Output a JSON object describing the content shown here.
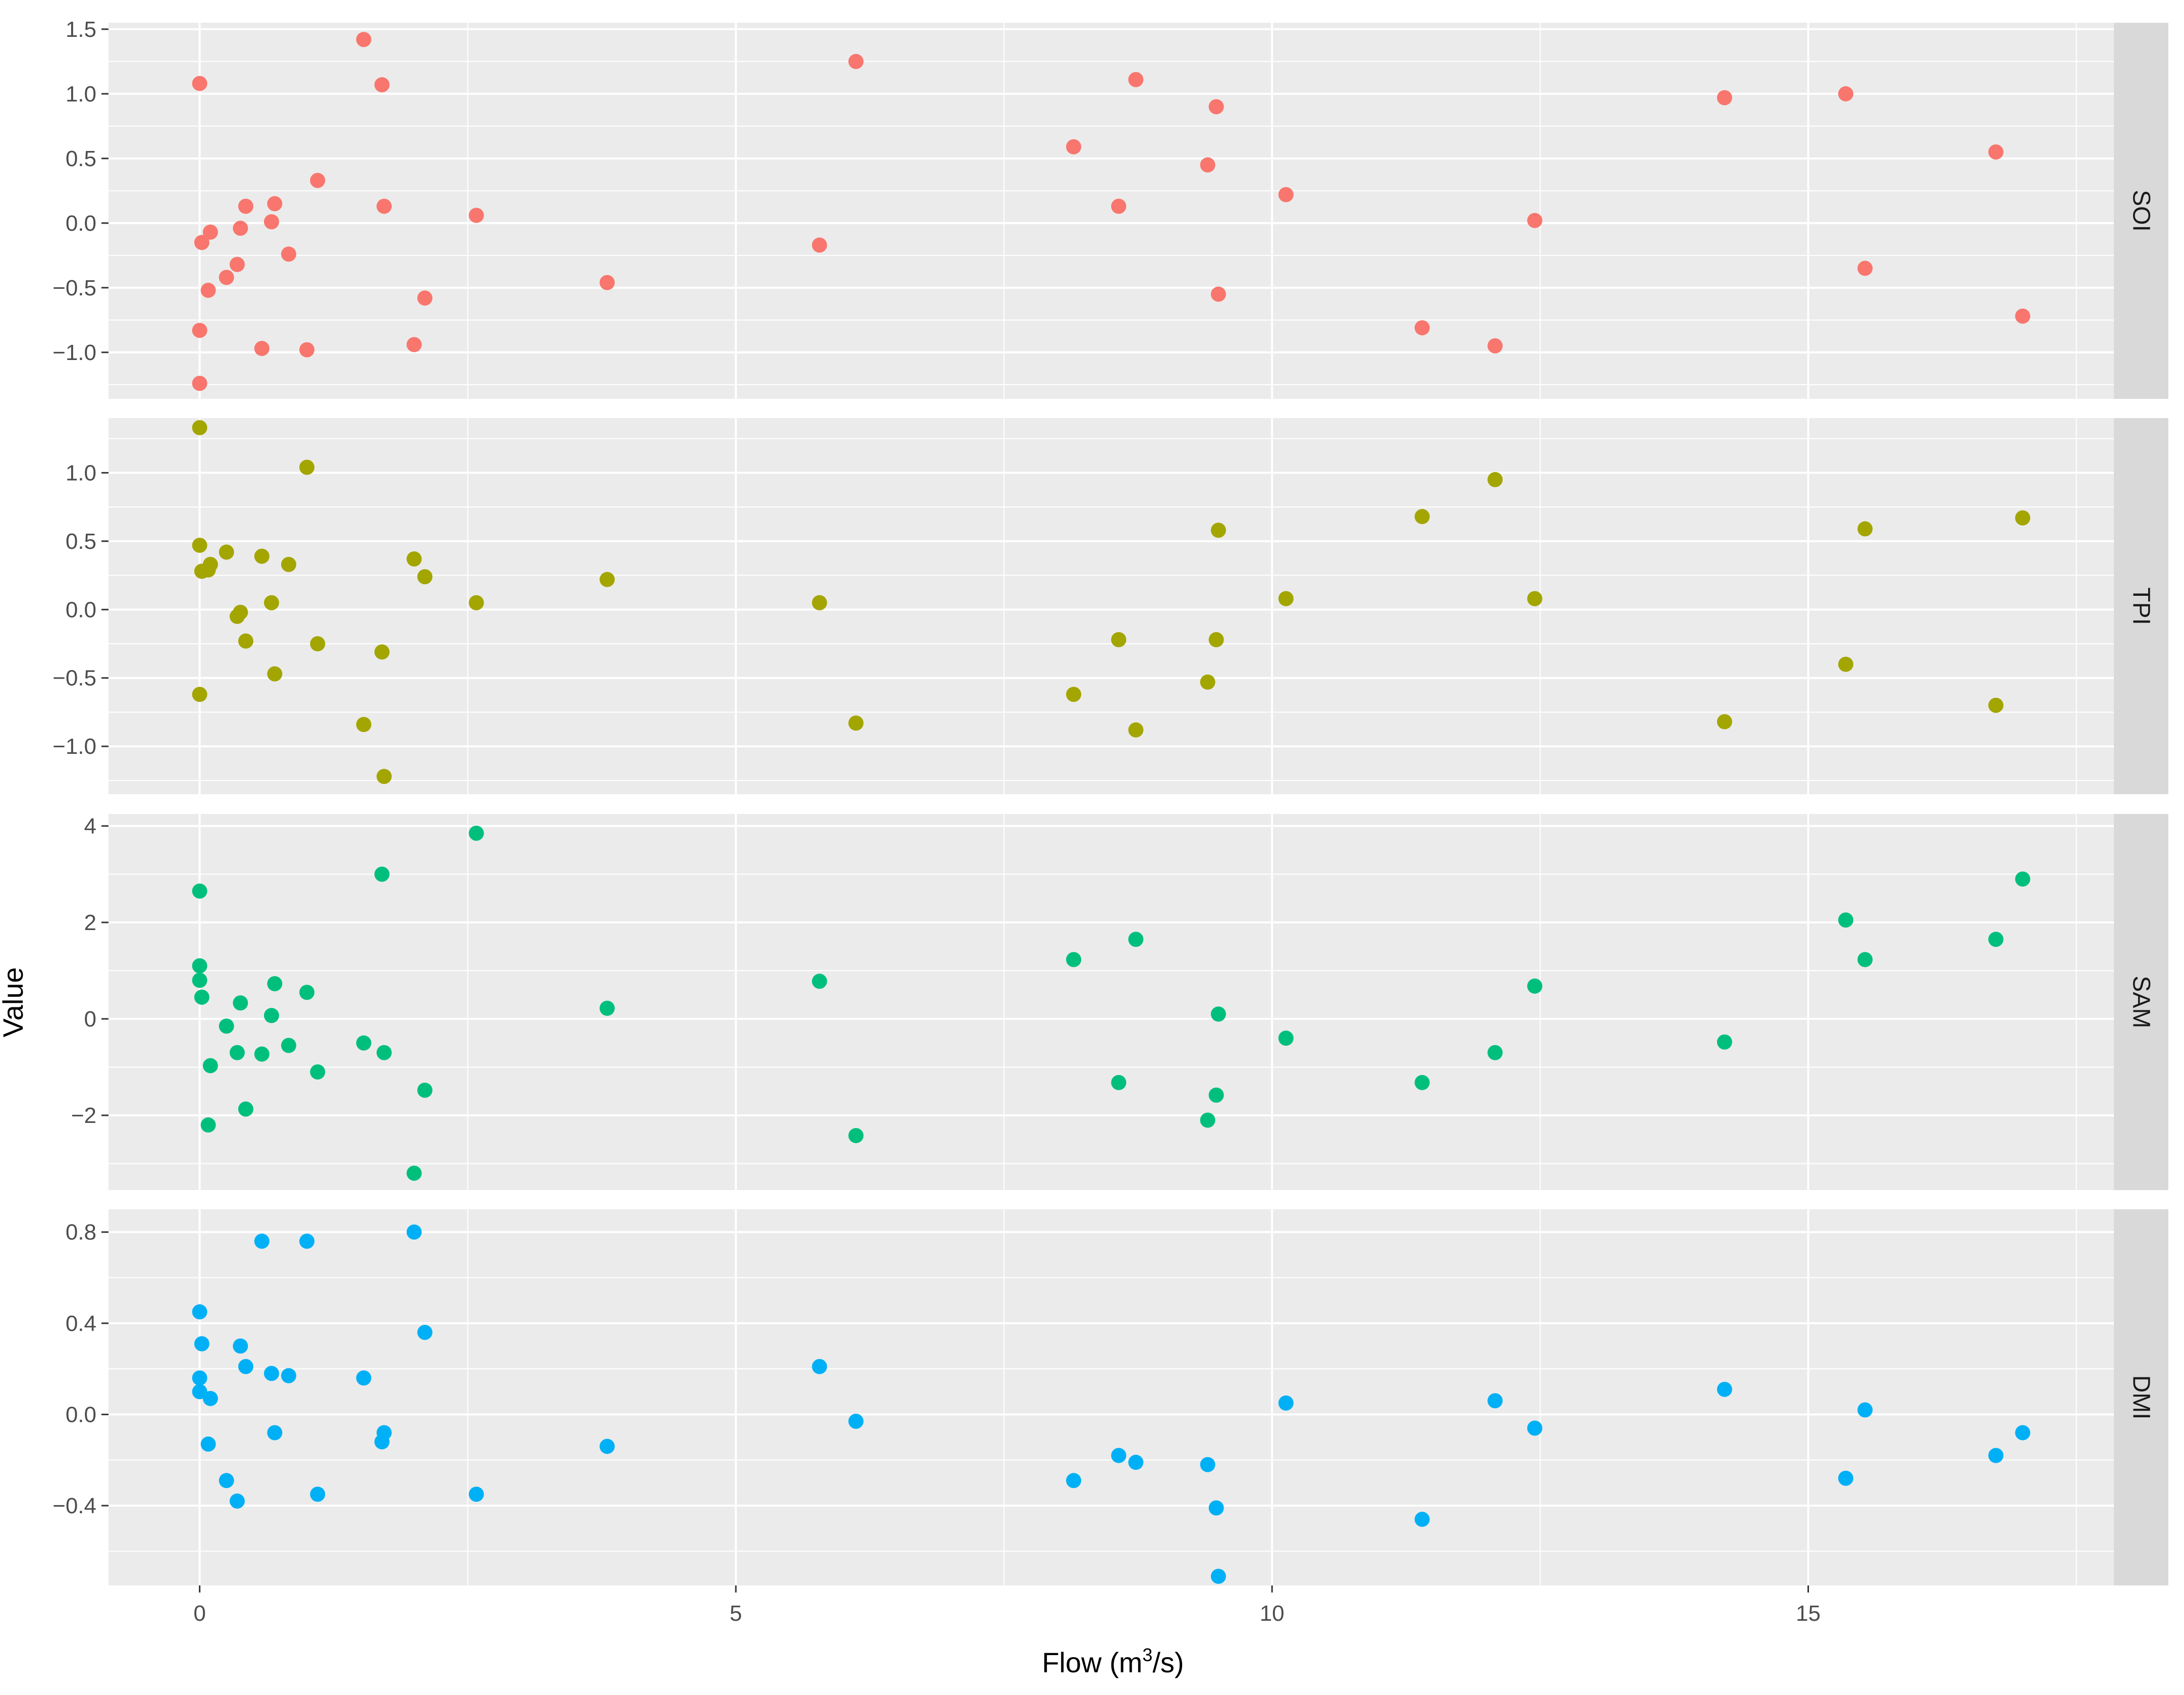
{
  "chart_data": {
    "type": "scatter",
    "xlabel": "Flow (m",
    "xlabel_sup": "3",
    "xlabel_suffix": "/s)",
    "ylabel": "Value",
    "xlim": [
      -0.85,
      17.85
    ],
    "x_ticks": [
      0,
      5,
      10,
      15
    ],
    "x_tick_labels": [
      "0",
      "5",
      "10",
      "15"
    ],
    "grid": true,
    "legend": "none",
    "panel_background": "#ebebeb",
    "strip_background": "#d9d9d9",
    "panels": [
      {
        "name": "SOI",
        "color": "#F8766D",
        "ylim": [
          -1.36,
          1.55
        ],
        "y_ticks": [
          -1.0,
          -0.5,
          0.0,
          0.5,
          1.0,
          1.5
        ],
        "y_tick_labels": [
          "−1.0",
          "−0.5",
          "0.0",
          "0.5",
          "1.0",
          "1.5"
        ],
        "points": [
          [
            0,
            1.08
          ],
          [
            0,
            -0.83
          ],
          [
            0,
            -1.24
          ],
          [
            0.02,
            -0.15
          ],
          [
            0.08,
            -0.52
          ],
          [
            0.1,
            -0.07
          ],
          [
            0.25,
            -0.42
          ],
          [
            0.35,
            -0.32
          ],
          [
            0.38,
            -0.04
          ],
          [
            0.43,
            0.13
          ],
          [
            0.58,
            -0.97
          ],
          [
            0.67,
            0.01
          ],
          [
            0.7,
            0.15
          ],
          [
            0.83,
            -0.24
          ],
          [
            1.0,
            -0.98
          ],
          [
            1.1,
            0.33
          ],
          [
            1.53,
            1.42
          ],
          [
            1.7,
            1.07
          ],
          [
            1.72,
            0.13
          ],
          [
            2.0,
            -0.94
          ],
          [
            2.1,
            -0.58
          ],
          [
            2.58,
            0.06
          ],
          [
            3.8,
            -0.46
          ],
          [
            5.78,
            -0.17
          ],
          [
            6.12,
            1.25
          ],
          [
            8.15,
            0.59
          ],
          [
            8.57,
            0.13
          ],
          [
            8.73,
            1.11
          ],
          [
            9.4,
            0.45
          ],
          [
            9.48,
            0.9
          ],
          [
            9.5,
            -0.55
          ],
          [
            10.13,
            0.22
          ],
          [
            11.4,
            -0.81
          ],
          [
            12.08,
            -0.95
          ],
          [
            12.45,
            0.02
          ],
          [
            14.22,
            0.97
          ],
          [
            15.35,
            1.0
          ],
          [
            15.53,
            -0.35
          ],
          [
            16.75,
            0.55
          ],
          [
            17.0,
            -0.72
          ]
        ]
      },
      {
        "name": "TPI",
        "color": "#A3A500",
        "ylim": [
          -1.35,
          1.4
        ],
        "y_ticks": [
          -1.0,
          -0.5,
          0.0,
          0.5,
          1.0
        ],
        "y_tick_labels": [
          "−1.0",
          "−0.5",
          "0.0",
          "0.5",
          "1.0"
        ],
        "points": [
          [
            0,
            1.33
          ],
          [
            0,
            0.47
          ],
          [
            0,
            -0.62
          ],
          [
            0.02,
            0.28
          ],
          [
            0.08,
            0.29
          ],
          [
            0.1,
            0.33
          ],
          [
            0.25,
            0.42
          ],
          [
            0.35,
            -0.05
          ],
          [
            0.38,
            -0.02
          ],
          [
            0.43,
            -0.23
          ],
          [
            0.58,
            0.39
          ],
          [
            0.67,
            0.05
          ],
          [
            0.7,
            -0.47
          ],
          [
            0.83,
            0.33
          ],
          [
            1.0,
            1.04
          ],
          [
            1.1,
            -0.25
          ],
          [
            1.53,
            -0.84
          ],
          [
            1.7,
            -0.31
          ],
          [
            1.72,
            -1.22
          ],
          [
            2.0,
            0.37
          ],
          [
            2.1,
            0.24
          ],
          [
            2.58,
            0.05
          ],
          [
            3.8,
            0.22
          ],
          [
            5.78,
            0.05
          ],
          [
            6.12,
            -0.83
          ],
          [
            8.15,
            -0.62
          ],
          [
            8.57,
            -0.22
          ],
          [
            8.73,
            -0.88
          ],
          [
            9.4,
            -0.53
          ],
          [
            9.48,
            -0.22
          ],
          [
            9.5,
            0.58
          ],
          [
            10.13,
            0.08
          ],
          [
            11.4,
            0.68
          ],
          [
            12.08,
            0.95
          ],
          [
            12.45,
            0.08
          ],
          [
            14.22,
            -0.82
          ],
          [
            15.35,
            -0.4
          ],
          [
            15.53,
            0.59
          ],
          [
            16.75,
            -0.7
          ],
          [
            17.0,
            0.67
          ]
        ]
      },
      {
        "name": "SAM",
        "color": "#00BF7D",
        "ylim": [
          -3.55,
          4.25
        ],
        "y_ticks": [
          -2,
          0,
          2,
          4
        ],
        "y_tick_labels": [
          "−2",
          "0",
          "2",
          "4"
        ],
        "points": [
          [
            0,
            2.65
          ],
          [
            0,
            1.1
          ],
          [
            0,
            0.8
          ],
          [
            0.02,
            0.45
          ],
          [
            0.08,
            -2.2
          ],
          [
            0.1,
            -0.97
          ],
          [
            0.25,
            -0.15
          ],
          [
            0.35,
            -0.7
          ],
          [
            0.38,
            0.33
          ],
          [
            0.43,
            -1.87
          ],
          [
            0.58,
            -0.73
          ],
          [
            0.67,
            0.07
          ],
          [
            0.7,
            0.73
          ],
          [
            0.83,
            -0.55
          ],
          [
            1.0,
            0.55
          ],
          [
            1.1,
            -1.1
          ],
          [
            1.53,
            -0.5
          ],
          [
            1.7,
            3.0
          ],
          [
            1.72,
            -0.7
          ],
          [
            2.0,
            -3.2
          ],
          [
            2.1,
            -1.48
          ],
          [
            2.58,
            3.85
          ],
          [
            3.8,
            0.22
          ],
          [
            5.78,
            0.78
          ],
          [
            6.12,
            -2.42
          ],
          [
            8.15,
            1.23
          ],
          [
            8.57,
            -1.32
          ],
          [
            8.73,
            1.65
          ],
          [
            9.4,
            -2.1
          ],
          [
            9.48,
            -1.58
          ],
          [
            9.5,
            0.1
          ],
          [
            10.13,
            -0.4
          ],
          [
            11.4,
            -1.32
          ],
          [
            12.08,
            -0.7
          ],
          [
            12.45,
            0.68
          ],
          [
            14.22,
            -0.48
          ],
          [
            15.35,
            2.05
          ],
          [
            15.53,
            1.23
          ],
          [
            16.75,
            1.65
          ],
          [
            17.0,
            2.9
          ]
        ]
      },
      {
        "name": "DMI",
        "color": "#00B0F6",
        "ylim": [
          -0.75,
          0.9
        ],
        "y_ticks": [
          -0.4,
          0.0,
          0.4,
          0.8
        ],
        "y_tick_labels": [
          "−0.4",
          "0.0",
          "0.4",
          "0.8"
        ],
        "points": [
          [
            0,
            0.45
          ],
          [
            0,
            0.16
          ],
          [
            0,
            0.1
          ],
          [
            0.02,
            0.31
          ],
          [
            0.08,
            -0.13
          ],
          [
            0.1,
            0.07
          ],
          [
            0.25,
            -0.29
          ],
          [
            0.35,
            -0.38
          ],
          [
            0.38,
            0.3
          ],
          [
            0.43,
            0.21
          ],
          [
            0.58,
            0.76
          ],
          [
            0.67,
            0.18
          ],
          [
            0.7,
            -0.08
          ],
          [
            0.83,
            0.17
          ],
          [
            1.0,
            0.76
          ],
          [
            1.1,
            -0.35
          ],
          [
            1.53,
            0.16
          ],
          [
            1.7,
            -0.12
          ],
          [
            1.72,
            -0.08
          ],
          [
            2.0,
            0.8
          ],
          [
            2.1,
            0.36
          ],
          [
            2.58,
            -0.35
          ],
          [
            3.8,
            -0.14
          ],
          [
            5.78,
            0.21
          ],
          [
            6.12,
            -0.03
          ],
          [
            8.15,
            -0.29
          ],
          [
            8.57,
            -0.18
          ],
          [
            8.73,
            -0.21
          ],
          [
            9.4,
            -0.22
          ],
          [
            9.48,
            -0.41
          ],
          [
            9.5,
            -0.71
          ],
          [
            10.13,
            0.05
          ],
          [
            11.4,
            -0.46
          ],
          [
            12.08,
            0.06
          ],
          [
            12.45,
            -0.06
          ],
          [
            14.22,
            0.11
          ],
          [
            15.35,
            -0.28
          ],
          [
            15.53,
            0.02
          ],
          [
            16.75,
            -0.18
          ],
          [
            17.0,
            -0.08
          ]
        ]
      }
    ]
  }
}
